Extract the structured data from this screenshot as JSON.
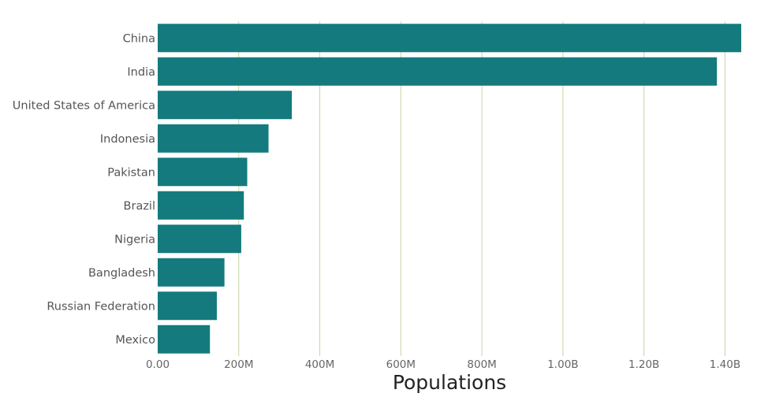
{
  "colors": {
    "bar": "#147a7e",
    "grid": "#c8d5a3",
    "background": "#ffffff"
  },
  "chart_data": {
    "type": "bar",
    "orientation": "horizontal",
    "categories": [
      "China",
      "India",
      "United States of America",
      "Indonesia",
      "Pakistan",
      "Brazil",
      "Nigeria",
      "Bangladesh",
      "Russian Federation",
      "Mexico"
    ],
    "values": [
      1440000000,
      1380000000,
      331000000,
      273500000,
      220900000,
      212600000,
      206100000,
      164700000,
      145900000,
      128900000
    ],
    "xlim": [
      0,
      1440000000
    ],
    "x_ticks": [
      0,
      200000000,
      400000000,
      600000000,
      800000000,
      1000000000,
      1200000000,
      1400000000
    ],
    "x_tick_labels": [
      "0.00",
      "200M",
      "400M",
      "600M",
      "800M",
      "1.00B",
      "1.20B",
      "1.40B"
    ],
    "xlabel": "Populations",
    "ylabel": "",
    "title": "",
    "grid": "vertical",
    "legend": "none"
  }
}
